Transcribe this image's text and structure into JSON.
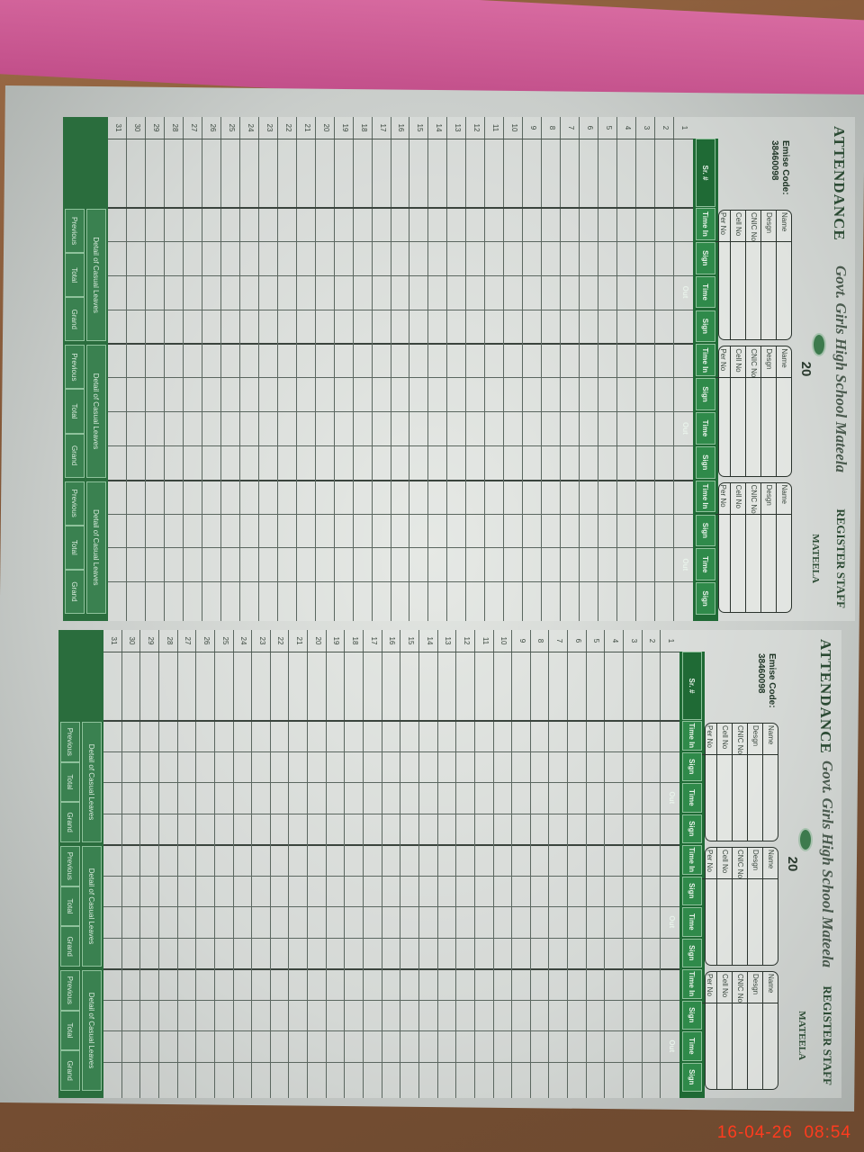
{
  "sheets": [
    {
      "title": "ATTENDANCE",
      "school": "Govt. Girls High School Mateela",
      "register": "REGISTER STAFF",
      "place": "MATEELA",
      "year": "20",
      "emis_label": "Emise Code:",
      "emis_code": "38460098",
      "sr_label": "Sr. #"
    },
    {
      "title": "ATTENDANCE",
      "school": "Govt. Girls High School Mateela",
      "register": "REGISTER STAFF",
      "place": "MATEELA",
      "year": "20",
      "emis_label": "Emise Code:",
      "emis_code": "38460098",
      "sr_label": "Sr. #"
    }
  ],
  "staff_fields": [
    "Name",
    "Desgn",
    "CNIC No",
    "Cell No",
    "Per No"
  ],
  "column_labels": [
    "Time In",
    "Sign",
    "Time Out",
    "Sign"
  ],
  "days": [
    1,
    2,
    3,
    4,
    5,
    6,
    7,
    8,
    9,
    10,
    11,
    12,
    13,
    14,
    15,
    16,
    17,
    18,
    19,
    20,
    21,
    22,
    23,
    24,
    25,
    26,
    27,
    28,
    29,
    30,
    31
  ],
  "footer": {
    "heading": "Detail of Casual Leaves",
    "cells": [
      "Previous",
      "Total",
      "Grand"
    ]
  },
  "camera_timestamp": "16-04-26  08:54",
  "colors": {
    "register_green": "#1f6a35",
    "timestamp": "#ff3b1e"
  }
}
